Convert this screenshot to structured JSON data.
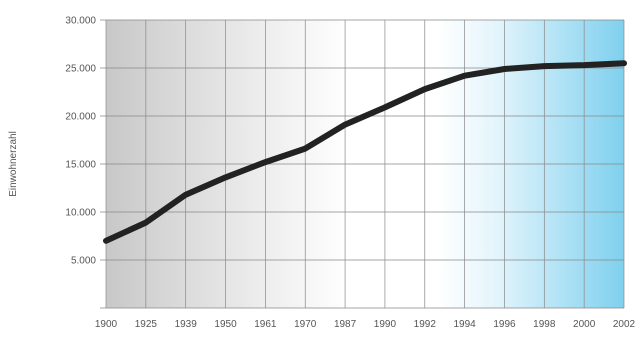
{
  "chart_data": {
    "type": "line",
    "title": "",
    "xlabel": "",
    "ylabel": "Einwohnerzahl",
    "x": [
      "1900",
      "1925",
      "1939",
      "1950",
      "1961",
      "1970",
      "1987",
      "1990",
      "1992",
      "1994",
      "1996",
      "1998",
      "2000",
      "2002"
    ],
    "series": [
      {
        "values": [
          7000,
          8900,
          11800,
          13600,
          15200,
          16600,
          19100,
          20900,
          22800,
          24200,
          24900,
          25200,
          25300,
          25500
        ]
      }
    ],
    "y_ticks": [
      "",
      "5.000",
      "10.000",
      "15.000",
      "20.000",
      "25.000",
      "30.000"
    ],
    "ylim": [
      0,
      30000
    ],
    "grid": true,
    "colors": {
      "line": "#222222",
      "grid": "#888888",
      "tick_label_early": "#555555",
      "tick_label_late": "#3aa3c9",
      "band_gray": "#c8c8c8",
      "band_blue": "#7fd0ee"
    },
    "highlighted_x_from_index": 7
  }
}
